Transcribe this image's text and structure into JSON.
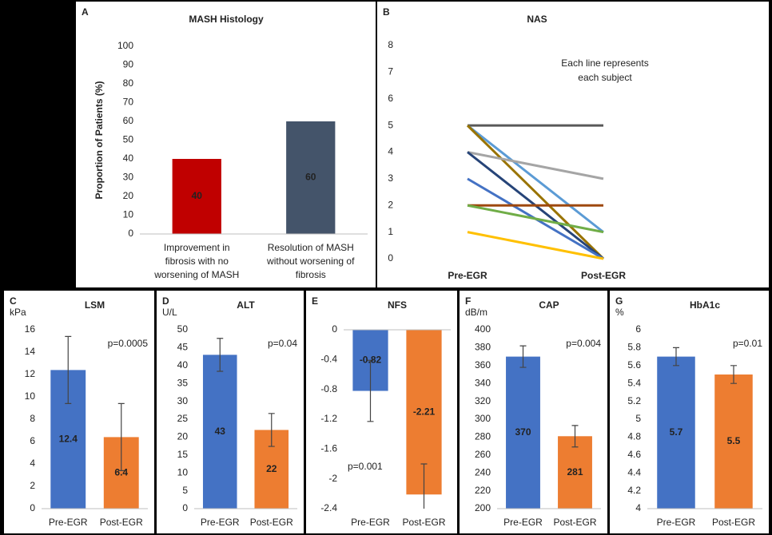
{
  "chart_data": [
    {
      "type": "bar",
      "panel_label": "A",
      "title": "MASH Histology",
      "y_label": "Proportion of Patients (%)",
      "categories": [
        "Improvement in fibrosis with no worsening of MASH",
        "Resolution of MASH without worsening of fibrosis"
      ],
      "values": [
        40,
        60
      ],
      "colors": [
        "#c00000",
        "#44546a"
      ],
      "ylim": [
        0,
        100
      ],
      "yticks": [
        0,
        10,
        20,
        30,
        40,
        50,
        60,
        70,
        80,
        90,
        100
      ],
      "grid": false
    },
    {
      "type": "line",
      "panel_label": "B",
      "title": "NAS",
      "annotation": "Each line represents each subject",
      "categories": [
        "Pre-EGR",
        "Post-EGR"
      ],
      "series": [
        {
          "color": "#595959",
          "values": [
            5,
            5
          ]
        },
        {
          "color": "#5b9bd5",
          "values": [
            5,
            1
          ]
        },
        {
          "color": "#997300",
          "values": [
            5,
            0
          ]
        },
        {
          "color": "#a5a5a5",
          "values": [
            4,
            3
          ]
        },
        {
          "color": "#264478",
          "values": [
            4,
            0
          ]
        },
        {
          "color": "#4472c4",
          "values": [
            3,
            0
          ]
        },
        {
          "color": "#9e480e",
          "values": [
            2,
            2
          ]
        },
        {
          "color": "#70ad47",
          "values": [
            2,
            1
          ]
        },
        {
          "color": "#ffc000",
          "values": [
            1,
            0
          ]
        }
      ],
      "ylim": [
        0,
        8
      ],
      "yticks": [
        0,
        1,
        2,
        3,
        4,
        5,
        6,
        7,
        8
      ],
      "grid": false
    },
    {
      "type": "bar",
      "panel_label": "C",
      "title": "LSM",
      "unit_label": "kPa",
      "annotation": "p=0.0005",
      "categories": [
        "Pre-EGR",
        "Post-EGR"
      ],
      "values": [
        12.4,
        6.4
      ],
      "errors": [
        3.0,
        3.0
      ],
      "colors": [
        "#4472c4",
        "#ed7d31"
      ],
      "ylim": [
        0,
        16
      ],
      "yticks": [
        0,
        2,
        4,
        6,
        8,
        10,
        12,
        14,
        16
      ],
      "grid": false
    },
    {
      "type": "bar",
      "panel_label": "D",
      "title": "ALT",
      "unit_label": "U/L",
      "annotation": "p=0.04",
      "categories": [
        "Pre-EGR",
        "Post-EGR"
      ],
      "values": [
        43,
        22
      ],
      "errors": [
        4.6,
        4.6
      ],
      "colors": [
        "#4472c4",
        "#ed7d31"
      ],
      "ylim": [
        0,
        50
      ],
      "yticks": [
        0,
        5,
        10,
        15,
        20,
        25,
        30,
        35,
        40,
        45,
        50
      ],
      "grid": false
    },
    {
      "type": "bar",
      "panel_label": "E",
      "title": "NFS",
      "annotation": "p=0.001",
      "categories": [
        "Pre-EGR",
        "Post-EGR"
      ],
      "values": [
        -0.82,
        -2.21
      ],
      "errors": [
        0.41,
        0.41
      ],
      "colors": [
        "#4472c4",
        "#ed7d31"
      ],
      "ylim": [
        -2.4,
        0
      ],
      "yticks": [
        -2.4,
        -2,
        -1.6,
        -1.2,
        -0.8,
        -0.4,
        0
      ],
      "grid": false
    },
    {
      "type": "bar",
      "panel_label": "F",
      "title": "CAP",
      "unit_label": "dB/m",
      "annotation": "p=0.004",
      "categories": [
        "Pre-EGR",
        "Post-EGR"
      ],
      "values": [
        370,
        281
      ],
      "errors": [
        12,
        12
      ],
      "colors": [
        "#4472c4",
        "#ed7d31"
      ],
      "ylim": [
        200,
        400
      ],
      "yticks": [
        200,
        220,
        240,
        260,
        280,
        300,
        320,
        340,
        360,
        380,
        400
      ],
      "grid": false
    },
    {
      "type": "bar",
      "panel_label": "G",
      "title": "HbA1c",
      "unit_label": "%",
      "annotation": "p=0.01",
      "categories": [
        "Pre-EGR",
        "Post-EGR"
      ],
      "values": [
        5.7,
        5.5
      ],
      "errors": [
        0.1,
        0.1
      ],
      "colors": [
        "#4472c4",
        "#ed7d31"
      ],
      "ylim": [
        4,
        6
      ],
      "yticks": [
        4,
        4.2,
        4.4,
        4.6,
        4.8,
        5,
        5.2,
        5.4,
        5.6,
        5.8,
        6
      ],
      "grid": false
    }
  ]
}
